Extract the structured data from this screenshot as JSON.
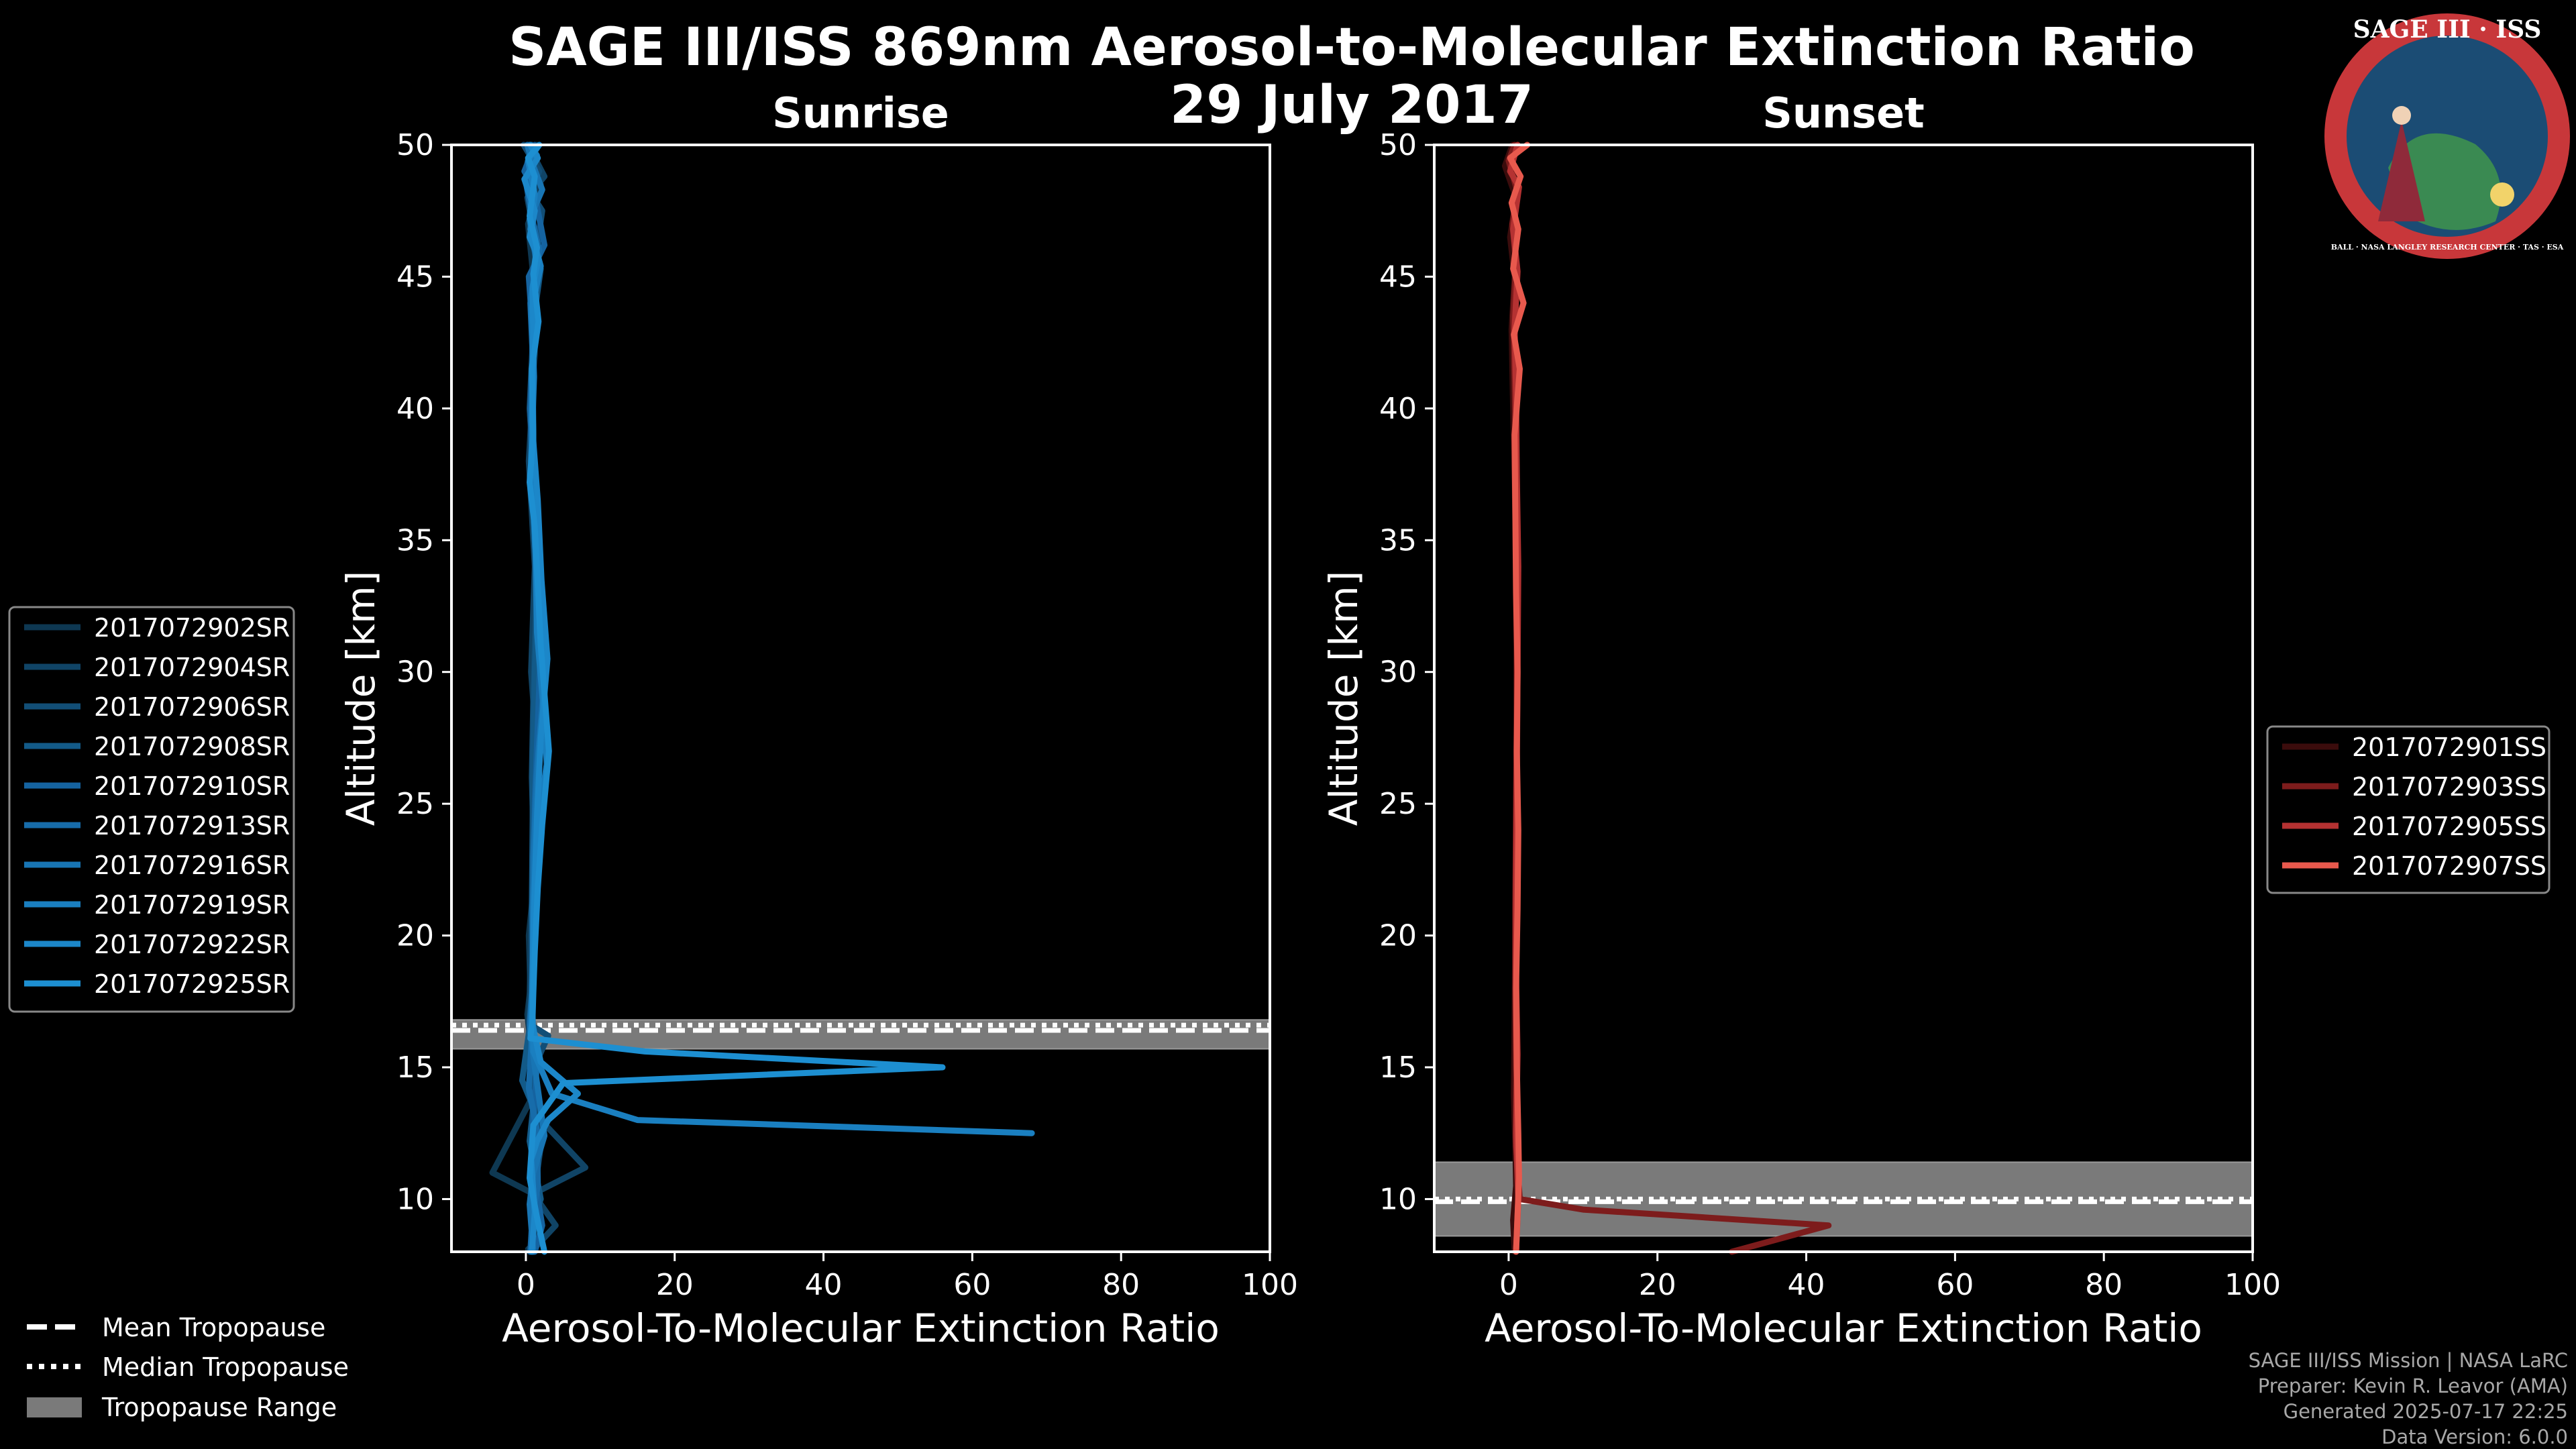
{
  "title": "SAGE III/ISS 869nm Aerosol-to-Molecular Extinction Ratio",
  "subtitle": "29 July 2017",
  "badge": {
    "text": "SAGE III · ISS",
    "ring_text": "BALL · NASA LANGLEY RESEARCH CENTER · TAS · ESA",
    "colors": {
      "ring": "#c8373a",
      "inner": "#1b4c74",
      "earth": "#3a8a52"
    }
  },
  "credits": {
    "line1": "SAGE III/ISS Mission | NASA LaRC",
    "line2": "Preparer: Kevin R. Leavor (AMA)",
    "line3": "Generated 2025-07-17 22:25",
    "line4": "Data Version: 6.0.0"
  },
  "tropopause_legend": {
    "mean": "Mean Tropopause",
    "median": "Median Tropopause",
    "range": "Tropopause Range"
  },
  "chart_data": [
    {
      "id": "sunrise",
      "type": "line",
      "title": "Sunrise",
      "xlabel": "Aerosol-To-Molecular Extinction Ratio",
      "ylabel": "Altitude [km]",
      "xlim": [
        -10,
        100
      ],
      "ylim": [
        8,
        50
      ],
      "xticks": [
        0,
        20,
        40,
        60,
        80,
        100
      ],
      "yticks": [
        10,
        15,
        20,
        25,
        30,
        35,
        40,
        45,
        50
      ],
      "tropopause": {
        "mean": 16.4,
        "median": 16.6,
        "range": [
          15.7,
          16.8
        ]
      },
      "legend": {
        "placement": "left-outside"
      },
      "series": [
        {
          "name": "2017072902SR",
          "color": "#0e3852",
          "x": [
            1.5,
            0.4,
            2.0,
            0.3,
            1.0,
            1.2,
            0.5,
            1.6,
            0.8,
            1.4,
            0.9,
            1.1,
            0.4,
            0.6,
            0.2,
            0.4,
            0.5,
            1.0,
            1.1,
            -4.5,
            1.0,
            1.4,
            1.2,
            1.9,
            0.8,
            0.3,
            0.5,
            1.0
          ],
          "y": [
            50,
            49,
            48.5,
            47,
            45,
            42,
            40,
            35,
            30,
            28,
            25,
            22,
            20,
            18,
            17,
            16.5,
            16.2,
            15.5,
            14,
            11,
            10.2,
            9.5,
            9,
            8.5,
            8.2,
            8.1,
            8.0,
            8.0
          ]
        },
        {
          "name": "2017072904SR",
          "color": "#104466",
          "x": [
            0.3,
            2.5,
            0.2,
            1.5,
            0.8,
            1.0,
            0.4,
            1.2,
            0.7,
            1.5,
            1.0,
            0.8,
            0.6,
            0.5,
            0.4,
            0.6,
            0.6,
            1.0,
            2.0,
            8.0,
            1.0,
            4.0,
            0.7
          ],
          "y": [
            50,
            48.8,
            48,
            46,
            44,
            41,
            38,
            34,
            30,
            27,
            24,
            21,
            19,
            17.5,
            16.8,
            16.4,
            16.0,
            15,
            13,
            11.2,
            10.2,
            9.0,
            8.0
          ]
        },
        {
          "name": "2017072906SR",
          "color": "#124e76",
          "x": [
            -0.3,
            1.8,
            0.6,
            2.2,
            0.9,
            1.0,
            0.5,
            1.5,
            1.3,
            1.0,
            0.8,
            1.1,
            0.9,
            0.8,
            0.7,
            3.0,
            0.8,
            2.0,
            0.8,
            0.9
          ],
          "y": [
            50,
            49,
            48.2,
            47.5,
            45,
            43,
            40,
            36,
            32,
            29,
            26,
            23,
            20,
            17.5,
            16.6,
            16.2,
            14.8,
            12,
            9.6,
            8.0
          ]
        },
        {
          "name": "2017072908SR",
          "color": "#135a88",
          "x": [
            0.8,
            0.2,
            1.4,
            0.6,
            2.0,
            1.1,
            0.7,
            0.9,
            1.6,
            1.2,
            1.0,
            0.9,
            0.8,
            0.9,
            0.7,
            -0.5,
            1.0,
            0.5,
            2.0,
            1.0,
            0.8
          ],
          "y": [
            50,
            49.3,
            47.8,
            46.5,
            45.3,
            43.5,
            41,
            37,
            33,
            30,
            27,
            24,
            21,
            18.5,
            16.9,
            14.5,
            13.5,
            12.2,
            10.0,
            9.2,
            8.0
          ]
        },
        {
          "name": "2017072910SR",
          "color": "#1563a0",
          "x": [
            1.2,
            -0.2,
            1.0,
            2.5,
            0.4,
            1.0,
            0.6,
            0.9,
            1.4,
            2.0,
            1.6,
            1.2,
            1.0,
            0.9,
            0.8,
            0.6,
            1.5,
            1.0,
            0.7,
            1.6,
            2.2,
            1.2
          ],
          "y": [
            50,
            49,
            48.4,
            46.2,
            45,
            42.5,
            40,
            37.5,
            34,
            31,
            28,
            25,
            22,
            19,
            17.2,
            16.3,
            15.2,
            13,
            11.5,
            10,
            9,
            8.0
          ]
        },
        {
          "name": "2017072913SR",
          "color": "#176caa",
          "x": [
            0.5,
            1.5,
            0.0,
            1.0,
            1.8,
            0.6,
            1.0,
            0.8,
            1.2,
            1.8,
            2.3,
            1.4,
            1.0,
            1.0,
            0.8,
            0.5,
            0.8,
            0.4,
            1.5,
            1.6,
            0.9,
            0.6
          ],
          "y": [
            50,
            49.6,
            48.6,
            47,
            46,
            44,
            41.5,
            38.5,
            35,
            32,
            29,
            26,
            23,
            20,
            17.8,
            16.6,
            16.1,
            14.2,
            12.6,
            10.5,
            9.4,
            8.0
          ]
        },
        {
          "name": "2017072916SR",
          "color": "#1875b4",
          "x": [
            0.2,
            1.0,
            2.2,
            0.5,
            1.4,
            0.7,
            0.9,
            1.0,
            1.1,
            1.9,
            2.6,
            1.7,
            1.2,
            0.9,
            1.0,
            0.7,
            0.6,
            1.2,
            2.5,
            1.0,
            0.5,
            1.0
          ],
          "y": [
            50,
            49.2,
            48.3,
            47.2,
            45.6,
            44.2,
            42,
            39,
            36,
            33,
            30,
            27,
            24,
            21,
            18.5,
            16.8,
            16.3,
            15,
            12.4,
            11,
            9.8,
            8.0
          ]
        },
        {
          "name": "2017072919SR",
          "color": "#1a7fc0",
          "x": [
            1.8,
            0.3,
            1.2,
            0.6,
            2.0,
            0.8,
            1.1,
            0.7,
            1.3,
            1.5,
            2.4,
            2.8,
            1.8,
            1.4,
            1.0,
            0.9,
            1.0,
            3.5,
            15.0,
            68.0
          ],
          "y": [
            50,
            49.4,
            48.1,
            46.8,
            45.4,
            43.8,
            41.2,
            38,
            34.5,
            31.5,
            28.5,
            26.5,
            24.5,
            21.5,
            19,
            17,
            15.6,
            14,
            13.0,
            12.5
          ]
        },
        {
          "name": "2017072922SR",
          "color": "#1c87c9",
          "x": [
            0.6,
            1.6,
            -0.2,
            1.2,
            0.5,
            1.7,
            0.9,
            1.0,
            0.8,
            1.6,
            2.1,
            2.9,
            2.0,
            1.5,
            1.1,
            0.9,
            0.8,
            1.2,
            2.0,
            7.0,
            3.0,
            1.5,
            0.7,
            1.2,
            0.8
          ],
          "y": [
            50,
            49.5,
            48.7,
            47.5,
            46.5,
            45.7,
            44.6,
            42.8,
            39.5,
            36.5,
            33.5,
            30.5,
            27.5,
            24.5,
            21.2,
            18.5,
            16.8,
            16.2,
            15.2,
            14.0,
            13.0,
            12.2,
            11.5,
            9.5,
            8.0
          ]
        },
        {
          "name": "2017072925SR",
          "color": "#1d8fd1",
          "x": [
            1.8,
            0.3,
            1.2,
            0.5,
            1.5,
            1.0,
            1.7,
            0.8,
            1.0,
            0.5,
            1.2,
            1.6,
            2.0,
            3.1,
            2.2,
            1.6,
            1.2,
            1.0,
            0.9,
            0.6,
            16.0,
            56.0,
            5.0,
            1.0,
            0.5,
            1.5,
            2.5
          ],
          "y": [
            50,
            49.5,
            48.8,
            47.3,
            46.1,
            45.1,
            43.3,
            41.5,
            39,
            37.2,
            35.5,
            33.3,
            31,
            27,
            24.2,
            21.8,
            19.4,
            17.8,
            16.9,
            16.1,
            15.6,
            15.0,
            14.4,
            12.8,
            10.8,
            9.3,
            8.0
          ]
        }
      ]
    },
    {
      "id": "sunset",
      "type": "line",
      "title": "Sunset",
      "xlabel": "Aerosol-To-Molecular Extinction Ratio",
      "ylabel": "Altitude [km]",
      "xlim": [
        -10,
        100
      ],
      "ylim": [
        8,
        50
      ],
      "xticks": [
        0,
        20,
        40,
        60,
        80,
        100
      ],
      "yticks": [
        10,
        15,
        20,
        25,
        30,
        35,
        40,
        45,
        50
      ],
      "tropopause": {
        "mean": 9.9,
        "median": 10.0,
        "range": [
          8.6,
          11.4
        ]
      },
      "legend": {
        "placement": "right-outside"
      },
      "series": [
        {
          "name": "2017072901SS",
          "color": "#3b0c0c",
          "x": [
            0.5,
            -0.5,
            1.0,
            0.2,
            0.8,
            0.4,
            0.6,
            0.9,
            1.0,
            1.1,
            1.0,
            0.9,
            0.8,
            0.7,
            0.9,
            1.0,
            0.6,
            0.8
          ],
          "y": [
            50,
            49.2,
            48,
            46.5,
            45,
            43,
            40,
            36,
            32,
            28,
            24,
            20,
            17,
            14,
            12,
            10.5,
            9.2,
            8.0
          ]
        },
        {
          "name": "2017072903SS",
          "color": "#7d1c1c",
          "x": [
            0.8,
            0.0,
            1.2,
            0.5,
            1.0,
            0.6,
            0.8,
            1.0,
            1.2,
            1.1,
            1.0,
            0.9,
            0.9,
            1.0,
            1.0,
            1.5,
            10.0,
            43.0,
            30.0
          ],
          "y": [
            50,
            49.4,
            48.2,
            47,
            45.5,
            43.5,
            41,
            37,
            33,
            29,
            25,
            21,
            18,
            15,
            12,
            10.0,
            9.6,
            9.0,
            8.0
          ]
        },
        {
          "name": "2017072905SS",
          "color": "#b53232",
          "x": [
            1.2,
            0.2,
            1.4,
            0.6,
            1.2,
            0.8,
            1.0,
            1.1,
            1.3,
            1.2,
            1.1,
            1.0,
            1.0,
            1.2,
            1.0,
            1.3,
            1.0
          ],
          "y": [
            50,
            49.0,
            48.4,
            46.8,
            45.2,
            43.0,
            40.5,
            37.5,
            34,
            30,
            26,
            22,
            18.5,
            15.5,
            12.5,
            10.0,
            8.0
          ]
        },
        {
          "name": "2017072907SS",
          "color": "#e8594d",
          "x": [
            2.5,
            0.2,
            1.6,
            0.4,
            1.3,
            0.6,
            2.0,
            0.7,
            1.5,
            0.8,
            0.9,
            1.0,
            1.2,
            1.1,
            1.3,
            1.2,
            1.0,
            1.1,
            1.3,
            1.4,
            1.2,
            1.0
          ],
          "y": [
            50,
            49.5,
            48.8,
            47.8,
            46.8,
            45.3,
            44.0,
            42.8,
            41.5,
            39,
            36,
            33,
            30,
            27,
            24,
            21,
            18,
            15,
            12.5,
            10.8,
            9.4,
            8.0
          ]
        }
      ]
    }
  ]
}
